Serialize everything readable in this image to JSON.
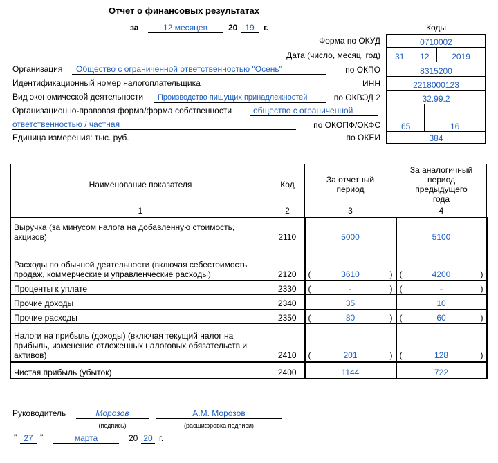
{
  "header": {
    "title": "Отчет о финансовых результатах",
    "period_prefix": "за",
    "period": "12 месяцев",
    "year_prefix": "20",
    "year": "19",
    "year_suffix": "г."
  },
  "codes": {
    "title": "Коды",
    "rows": [
      {
        "label": "Форма по ОКУД",
        "values": [
          "0710002"
        ]
      },
      {
        "label": "Дата (число, месяц, год)",
        "values": [
          "31",
          "12",
          "2019"
        ]
      },
      {
        "label": "по ОКПО",
        "values": [
          "8315200"
        ]
      },
      {
        "label": "ИНН",
        "values": [
          "2218000123"
        ]
      },
      {
        "label": "по ОКВЭД 2",
        "values": [
          "32.99.2"
        ]
      },
      {
        "label": "по ОКОПФ/ОКФС",
        "values": [
          "65",
          "16"
        ]
      },
      {
        "label": "по ОКЕИ",
        "values": [
          "384"
        ]
      }
    ]
  },
  "organization": {
    "name_label": "Организация",
    "name": "Общество с ограниченной ответственностью \"Осень\"",
    "inn_label": "Идентификационный номер налогоплательщика",
    "activity_label": "Вид экономической деятельности",
    "activity": "Производство пишущих принадлежностей",
    "form_label": "Организационно-правовая форма/форма собственности",
    "form_line1": "общество с ограниченной",
    "form_line2": "ответственностью / частная",
    "unit": "Единица измерения: тыс. руб."
  },
  "table": {
    "headers": [
      "Наименование показателя",
      "Код",
      "За отчетный период",
      "За аналогичный период предыдущего года"
    ],
    "column_numbers": [
      "1",
      "2",
      "3",
      "4"
    ],
    "rows": [
      {
        "name": "Выручка (за минусом налога на добавленную стоимость, акцизов)",
        "code": "2110",
        "current": "5000",
        "previous": "5100"
      },
      {
        "name": "Расходы по обычной деятельности (включая себестоимость продаж, коммерческие и управленческие расходы)",
        "code": "2120",
        "current": "3610",
        "previous": "4200",
        "brackets": [
          "(",
          ")"
        ]
      },
      {
        "name": "Проценты к уплате",
        "code": "2330",
        "current": "-",
        "previous": "-",
        "brackets": [
          "(",
          ")"
        ]
      },
      {
        "name": "Прочие доходы",
        "code": "2340",
        "current": "35",
        "previous": "10"
      },
      {
        "name": "Прочие расходы",
        "code": "2350",
        "current": "80",
        "previous": "60",
        "brackets": [
          "(",
          ")"
        ]
      },
      {
        "name": "Налоги на прибыль (доходы) (включая текущий налог на прибыль, изменение отложенных налоговых обязательств и активов)",
        "code": "2410",
        "current": "201",
        "previous": "128",
        "brackets": [
          "(",
          ")"
        ]
      },
      {
        "name": "Чистая прибыль (убыток)",
        "code": "2400",
        "current": "1144",
        "previous": "722"
      }
    ]
  },
  "signature": {
    "role": "Руководитель",
    "signature": "Морозов",
    "signature_caption": "(подпись)",
    "name": "А.М. Морозов",
    "name_caption": "(расшифровка подписи)",
    "date": {
      "quote_open": "\"",
      "day": "27",
      "quote_close": "\"",
      "month": "марта",
      "year_prefix": "20",
      "year": "20",
      "year_suffix": "г."
    }
  }
}
